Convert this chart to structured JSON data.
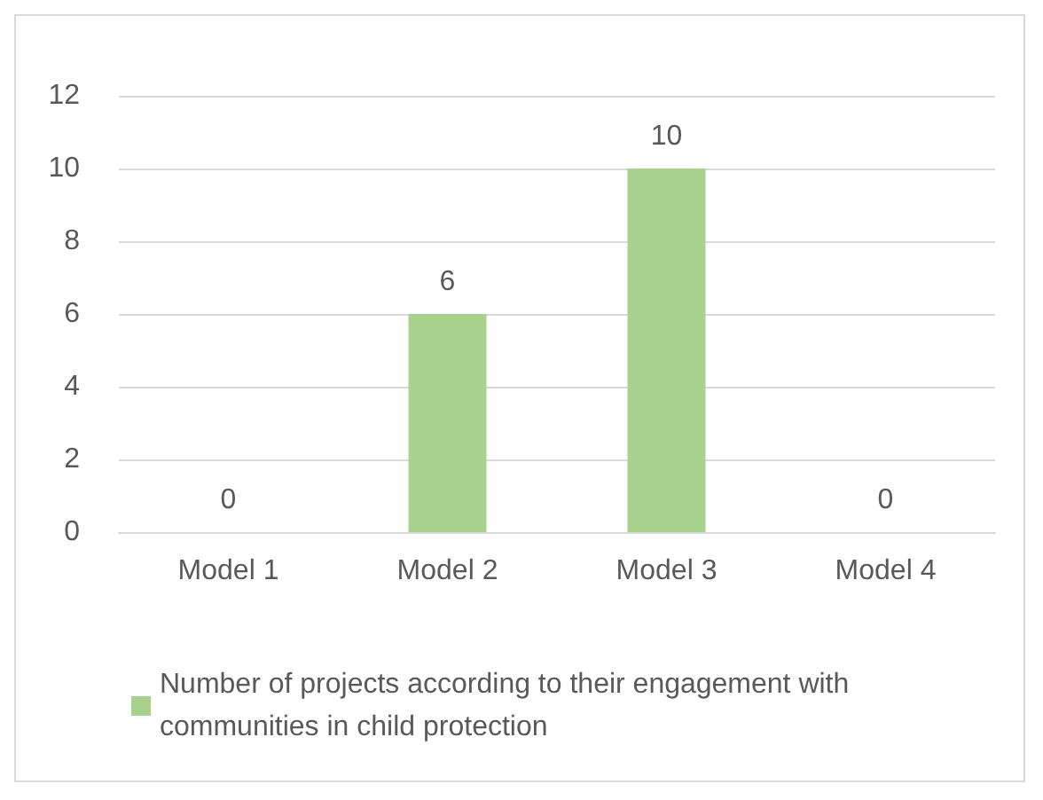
{
  "chart_data": {
    "type": "bar",
    "categories": [
      "Model 1",
      "Model 2",
      "Model 3",
      "Model 4"
    ],
    "series": [
      {
        "name": "Number of projects according to their engagement with communities in child protection",
        "color": "#a9d18e",
        "values": [
          0,
          6,
          10,
          0
        ]
      }
    ],
    "ylim": [
      0,
      12
    ],
    "yticks": [
      0,
      2,
      4,
      6,
      8,
      10,
      12
    ],
    "grid": "y",
    "legend": "bottom",
    "data_labels": true
  }
}
